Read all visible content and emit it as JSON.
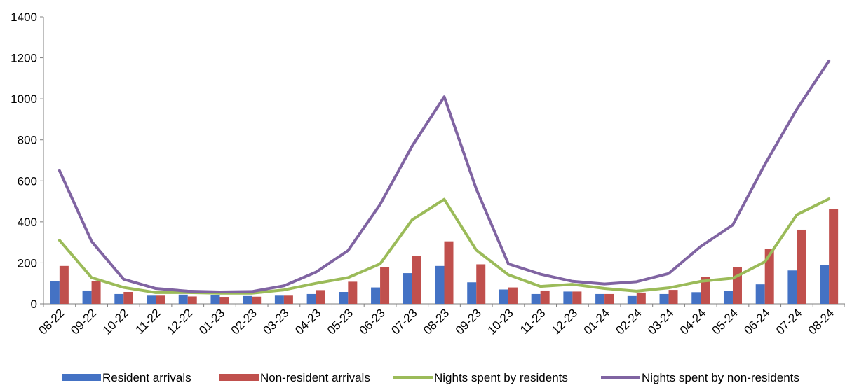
{
  "chart_data": {
    "type": "bar",
    "categories": [
      "08-22",
      "09-22",
      "10-22",
      "11-22",
      "12-22",
      "01-23",
      "02-23",
      "03-23",
      "04-23",
      "05-23",
      "06-23",
      "07-23",
      "08-23",
      "09-23",
      "10-23",
      "11-23",
      "12-23",
      "01-24",
      "02-24",
      "03-24",
      "04-24",
      "05-24",
      "06-24",
      "07-24",
      "08-24"
    ],
    "ylim": [
      0,
      1400
    ],
    "yticks": [
      0,
      200,
      400,
      600,
      800,
      1000,
      1200,
      1400
    ],
    "series": [
      {
        "name": "Resident arrivals",
        "kind": "bar",
        "color": "#4472C4",
        "values": [
          110,
          65,
          48,
          40,
          45,
          42,
          38,
          40,
          48,
          58,
          80,
          150,
          185,
          105,
          70,
          48,
          60,
          48,
          38,
          48,
          57,
          63,
          95,
          163,
          190
        ]
      },
      {
        "name": "Non-resident arrivals",
        "kind": "bar",
        "color": "#C0504D",
        "values": [
          185,
          110,
          58,
          40,
          36,
          34,
          35,
          40,
          67,
          108,
          178,
          235,
          305,
          193,
          80,
          65,
          60,
          48,
          55,
          68,
          130,
          178,
          268,
          362,
          462
        ]
      },
      {
        "name": "Nights spent by residents",
        "kind": "line",
        "color": "#9BBB59",
        "values": [
          310,
          128,
          80,
          55,
          55,
          52,
          52,
          68,
          100,
          128,
          195,
          410,
          510,
          262,
          142,
          85,
          95,
          75,
          62,
          78,
          110,
          125,
          205,
          435,
          512
        ]
      },
      {
        "name": "Nights spent by non-residents",
        "kind": "line",
        "color": "#8064A2",
        "values": [
          650,
          305,
          120,
          75,
          62,
          58,
          60,
          88,
          155,
          260,
          485,
          770,
          1010,
          560,
          195,
          145,
          110,
          97,
          108,
          148,
          280,
          385,
          680,
          950,
          1185
        ]
      }
    ],
    "legend_position": "bottom",
    "grid": false
  }
}
